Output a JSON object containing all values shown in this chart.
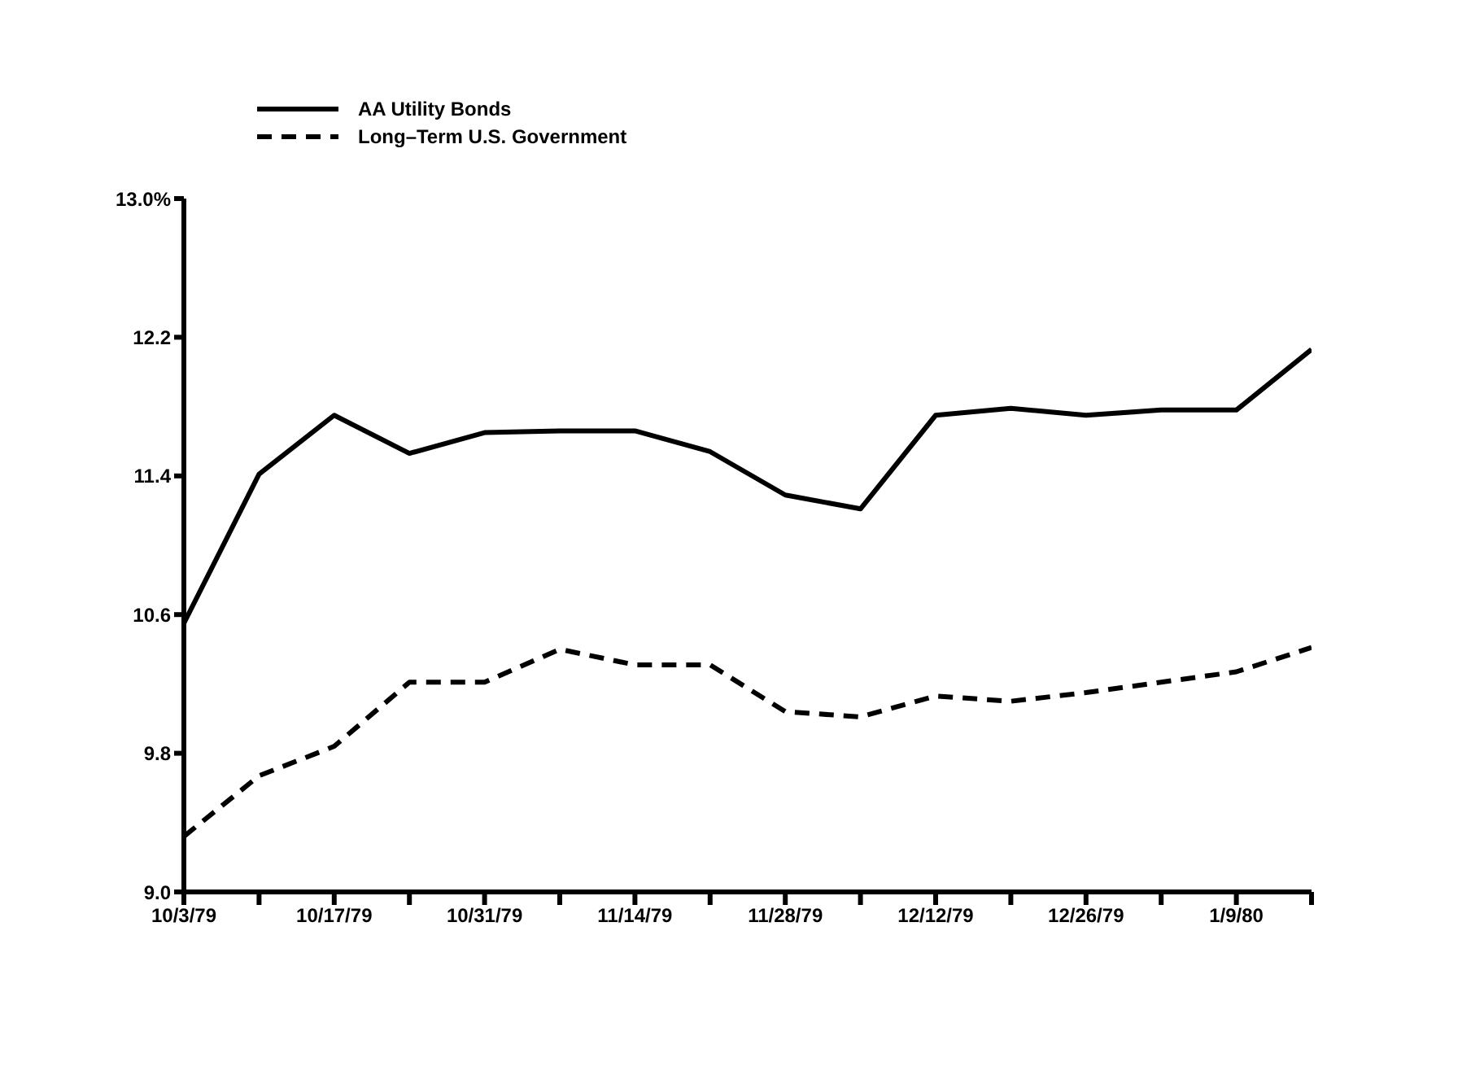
{
  "chart_data": {
    "type": "line",
    "x": [
      "1979-10-03",
      "1979-10-10",
      "1979-10-17",
      "1979-10-24",
      "1979-10-31",
      "1979-11-07",
      "1979-11-14",
      "1979-11-21",
      "1979-11-28",
      "1979-12-05",
      "1979-12-12",
      "1979-12-19",
      "1979-12-26",
      "1980-01-02",
      "1980-01-09",
      "1980-01-16"
    ],
    "series": [
      {
        "name": "AA Utility Bonds",
        "color": "#000000",
        "line_style": "solid",
        "values": [
          10.55,
          11.41,
          11.75,
          11.53,
          11.65,
          11.66,
          11.66,
          11.54,
          11.29,
          11.21,
          11.75,
          11.79,
          11.75,
          11.78,
          11.78,
          12.13
        ]
      },
      {
        "name": "Long–Term U.S. Government",
        "color": "#000000",
        "line_style": "dashed",
        "values": [
          9.32,
          9.67,
          9.84,
          10.21,
          10.21,
          10.4,
          10.31,
          10.31,
          10.04,
          10.01,
          10.13,
          10.1,
          10.15,
          10.21,
          10.27,
          10.41
        ]
      }
    ],
    "ylim": [
      9,
      13
    ],
    "yticks": [
      {
        "value": 9,
        "label": "9.0"
      },
      9.8,
      10.6,
      11.4,
      12.2,
      {
        "value": 13,
        "label": "13.0%"
      }
    ],
    "xlim": [
      "1979-10-03",
      "1980-01-16"
    ],
    "xticks": [
      {
        "value": "1979-10-03",
        "label": "10/3/79"
      },
      {
        "value": "1979-10-10",
        "label": null
      },
      {
        "value": "1979-10-17",
        "label": "10/17/79"
      },
      {
        "value": "1979-10-24",
        "label": null
      },
      {
        "value": "1979-10-31",
        "label": "10/31/79"
      },
      {
        "value": "1979-11-07",
        "label": null
      },
      {
        "value": "1979-11-14",
        "label": "11/14/79"
      },
      {
        "value": "1979-11-21",
        "label": null
      },
      {
        "value": "1979-11-28",
        "label": "11/28/79"
      },
      {
        "value": "1979-12-05",
        "label": null
      },
      {
        "value": "1979-12-12",
        "label": "12/12/79"
      },
      {
        "value": "1979-12-19",
        "label": null
      },
      {
        "value": "1979-12-26",
        "label": "12/26/79"
      },
      {
        "value": "1980-01-02",
        "label": null
      },
      {
        "value": "1980-01-09",
        "label": "1/9/80"
      },
      {
        "value": "1980-01-16",
        "label": null
      }
    ],
    "grid": false,
    "legend": "top left",
    "marker": "none"
  }
}
